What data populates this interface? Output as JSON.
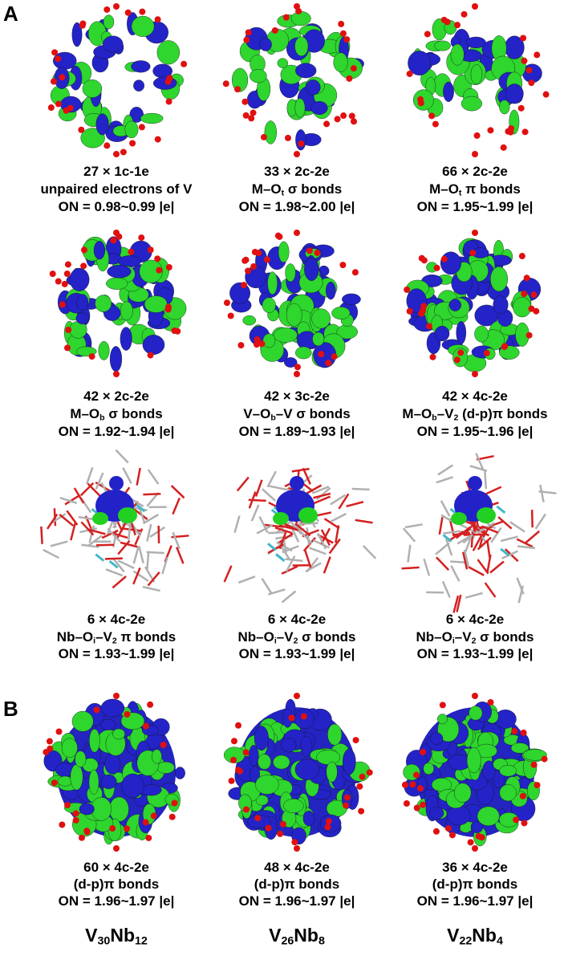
{
  "panels": [
    {
      "label": "A",
      "items": [
        {
          "lines": [
            [
              "27 × 1c-1e"
            ],
            [
              "unpaired electrons of V"
            ],
            [
              "ON = 0.98~0.99 |e|"
            ]
          ]
        },
        {
          "lines": [
            [
              "33 × 2c-2e"
            ],
            [
              "M–O",
              {
                "sub": "t"
              },
              " σ bonds"
            ],
            [
              "ON = 1.98~2.00 |e|"
            ]
          ]
        },
        {
          "lines": [
            [
              "66 × 2c-2e"
            ],
            [
              "M–O",
              {
                "sub": "t"
              },
              " π bonds"
            ],
            [
              "ON = 1.95~1.99 |e|"
            ]
          ]
        },
        {
          "lines": [
            [
              "42 × 2c-2e"
            ],
            [
              "M–O",
              {
                "sub": "b"
              },
              " σ bonds"
            ],
            [
              "ON = 1.92~1.94 |e|"
            ]
          ]
        },
        {
          "lines": [
            [
              "42 × 3c-2e"
            ],
            [
              "V–O",
              {
                "sub": "b"
              },
              "–V σ bonds"
            ],
            [
              "ON = 1.89~1.93 |e|"
            ]
          ]
        },
        {
          "lines": [
            [
              "42 × 4c-2e"
            ],
            [
              "M–O",
              {
                "sub": "b"
              },
              "–V",
              {
                "sub": "2"
              },
              " (d-p)π bonds"
            ],
            [
              "ON = 1.95~1.96 |e|"
            ]
          ]
        },
        {
          "lines": [
            [
              "6 × 4c-2e"
            ],
            [
              "Nb–O",
              {
                "sub": "i"
              },
              "–V",
              {
                "sub": "2"
              },
              " π bonds"
            ],
            [
              "ON = 1.93~1.99 |e|"
            ]
          ]
        },
        {
          "lines": [
            [
              "6 × 4c-2e"
            ],
            [
              "Nb–O",
              {
                "sub": "i"
              },
              "–V",
              {
                "sub": "2"
              },
              " σ bonds"
            ],
            [
              "ON = 1.93~1.99 |e|"
            ]
          ]
        },
        {
          "lines": [
            [
              "6 × 4c-2e"
            ],
            [
              "Nb–O",
              {
                "sub": "i"
              },
              "–V",
              {
                "sub": "2"
              },
              " σ bonds"
            ],
            [
              "ON = 1.93~1.99 |e|"
            ]
          ]
        }
      ]
    },
    {
      "label": "B",
      "items": [
        {
          "lines": [
            [
              "60 × 4c-2e"
            ],
            [
              "(d-p)π bonds"
            ],
            [
              "ON = 1.96~1.97 |e|"
            ]
          ],
          "formula": [
            "V",
            {
              "sub": "30"
            },
            "Nb",
            {
              "sub": "12"
            }
          ]
        },
        {
          "lines": [
            [
              "48 × 4c-2e"
            ],
            [
              "(d-p)π bonds"
            ],
            [
              "ON = 1.96~1.97 |e|"
            ]
          ],
          "formula": [
            "V",
            {
              "sub": "26"
            },
            "Nb",
            {
              "sub": "8"
            }
          ]
        },
        {
          "lines": [
            [
              "36 × 4c-2e"
            ],
            [
              "(d-p)π bonds"
            ],
            [
              "ON = 1.96~1.97 |e|"
            ]
          ],
          "formula": [
            "V",
            {
              "sub": "22"
            },
            "Nb",
            {
              "sub": "4"
            }
          ]
        }
      ]
    }
  ]
}
